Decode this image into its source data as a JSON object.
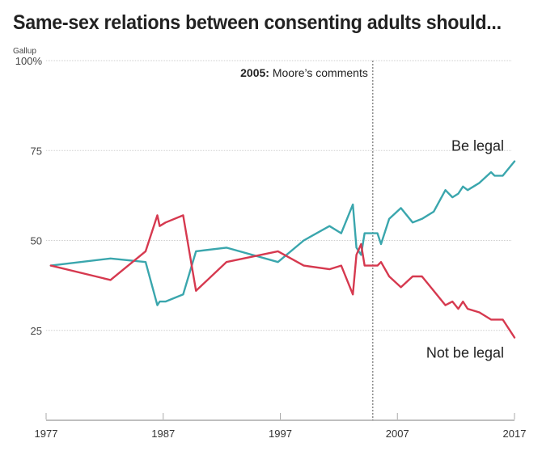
{
  "chart_data": {
    "type": "line",
    "title": "Same-sex relations between consenting adults should...",
    "subtitle": "Gallup",
    "xlabel": "",
    "ylabel": "",
    "xlim": [
      1977,
      2017
    ],
    "ylim": [
      0,
      100
    ],
    "x_ticks": [
      "1977",
      "1987",
      "1997",
      "2007",
      "2017"
    ],
    "x_tick_values": [
      1977,
      1987,
      1997,
      2007,
      2017
    ],
    "y_ticks": [
      "100%",
      "75",
      "50",
      "25"
    ],
    "y_tick_values": [
      100,
      75,
      50,
      25
    ],
    "grid": true,
    "x": [
      1977.4,
      1982.5,
      1985.5,
      1986.5,
      1986.7,
      1987.2,
      1988.7,
      1989.8,
      1992.4,
      1996.8,
      1999.0,
      2001.2,
      2002.2,
      2003.2,
      2003.5,
      2003.9,
      2004.2,
      2005.3,
      2005.6,
      2006.3,
      2007.3,
      2008.3,
      2009.1,
      2010.1,
      2011.1,
      2011.7,
      2012.2,
      2012.6,
      2013.0,
      2014.0,
      2015.0,
      2015.3,
      2016.0,
      2017.0
    ],
    "series": [
      {
        "name": "Be legal",
        "color": "#3aa6ad",
        "values": [
          43,
          45,
          44,
          32,
          33,
          33,
          35,
          47,
          48,
          44,
          50,
          54,
          52,
          60,
          48,
          46,
          52,
          52,
          49,
          56,
          59,
          55,
          56,
          58,
          64,
          62,
          63,
          65,
          64,
          66,
          69,
          68,
          68,
          72
        ]
      },
      {
        "name": "Not be legal",
        "color": "#d6394f",
        "values": [
          43,
          39,
          47,
          57,
          54,
          55,
          57,
          36,
          44,
          47,
          43,
          42,
          43,
          35,
          46,
          49,
          43,
          43,
          44,
          40,
          37,
          40,
          40,
          36,
          32,
          33,
          31,
          33,
          31,
          30,
          28,
          28,
          28,
          23
        ]
      }
    ],
    "annotations": [
      {
        "x": 2004.9,
        "type": "vline",
        "year_text": "2005:",
        "text": "Moore’s comments"
      }
    ],
    "legend": "direct-labels-right"
  }
}
